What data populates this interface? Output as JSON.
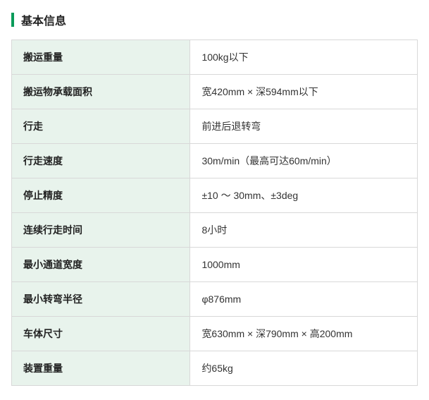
{
  "title": "基本信息",
  "table": {
    "label_bg": "#e8f3ec",
    "value_bg": "#ffffff",
    "border_color": "#d8d8d8",
    "accent_color": "#0a9b5a",
    "label_fontsize": 14,
    "value_fontsize": 14,
    "rows": [
      {
        "label": "搬运重量",
        "value": "100kg以下"
      },
      {
        "label": "搬运物承载面积",
        "value": "宽420mm × 深594mm以下"
      },
      {
        "label": "行走",
        "value": "前进后退转弯"
      },
      {
        "label": "行走速度",
        "value": "30m/min（最高可达60m/min）"
      },
      {
        "label": "停止精度",
        "value": "±10 ～ 30mm、±3deg"
      },
      {
        "label": "连续行走时间",
        "value": "8小时"
      },
      {
        "label": "最小通道宽度",
        "value": "1000mm"
      },
      {
        "label": "最小转弯半径",
        "value": "φ876mm"
      },
      {
        "label": "车体尺寸",
        "value": "宽630mm × 深790mm × 高200mm"
      },
      {
        "label": "装置重量",
        "value": "约65kg"
      }
    ]
  }
}
